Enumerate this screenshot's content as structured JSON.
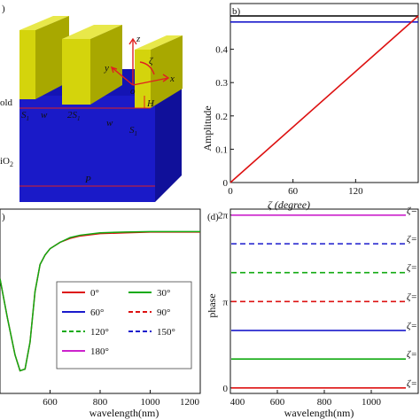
{
  "panel_a": {
    "tag": ")",
    "labels": {
      "gold": "old",
      "sio2": "iO",
      "sio2_sub": "2",
      "s1": "S",
      "s1_sub": "1",
      "w1": "w",
      "two_s1": "2S",
      "two_s1_sub": "1",
      "w2": "w",
      "s1b": "S",
      "s1b_sub": "1",
      "h": "H",
      "p": "P",
      "axis_z": "z",
      "axis_y": "y",
      "axis_x": "x",
      "zeta": "ζ",
      "origin": "o"
    },
    "colors": {
      "gold": "#d4d40c",
      "substrate": "#1a1ac8",
      "annot": "#e02020"
    }
  },
  "chart_data": [
    {
      "panel": "b",
      "tag": "b)",
      "type": "line",
      "xlabel": "ζ (degree)",
      "ylabel": "Amplitude",
      "xlim": [
        0,
        180
      ],
      "ylim": [
        0,
        0.5
      ],
      "xticks": [
        0,
        60,
        120
      ],
      "yticks": [
        0,
        0.1,
        0.2,
        0.3,
        0.4
      ],
      "series": [
        {
          "color": "#000000",
          "x": [
            0,
            180
          ],
          "y": [
            0.5,
            0.5
          ]
        },
        {
          "color": "#1a1acc",
          "x": [
            0,
            180
          ],
          "y": [
            0.482,
            0.482
          ]
        },
        {
          "color": "#dd1111",
          "x": [
            0,
            180
          ],
          "y": [
            0.0,
            0.5
          ]
        }
      ]
    },
    {
      "panel": "c",
      "tag": ")",
      "type": "line",
      "xlabel": "wavelength(nm)",
      "xlim": [
        400,
        1200
      ],
      "xticks": [
        600,
        800,
        1000,
        1200
      ],
      "legend": [
        "0°",
        "30°",
        "60°",
        "90°",
        "120°",
        "150°",
        "180°"
      ],
      "legend_colors": [
        "#dd1111",
        "#11aa11",
        "#1a1acc",
        "#dd1111",
        "#11aa11",
        "#1a1acc",
        "#cc22cc"
      ],
      "legend_dashed": [
        false,
        false,
        false,
        true,
        true,
        true,
        false
      ],
      "series": [
        {
          "color": "#dd1111",
          "x": [
            400,
            430,
            460,
            480,
            500,
            520,
            540,
            560,
            580,
            600,
            640,
            680,
            720,
            800,
            900,
            1000,
            1100,
            1200
          ],
          "y": [
            0.7,
            0.45,
            0.22,
            0.12,
            0.13,
            0.3,
            0.62,
            0.79,
            0.85,
            0.89,
            0.93,
            0.955,
            0.97,
            0.985,
            0.99,
            0.995,
            0.995,
            0.995
          ]
        },
        {
          "color": "#11aa11",
          "x": [
            400,
            430,
            460,
            480,
            500,
            520,
            540,
            560,
            580,
            600,
            640,
            680,
            720,
            800,
            900,
            1000,
            1100,
            1200
          ],
          "y": [
            0.7,
            0.45,
            0.22,
            0.12,
            0.13,
            0.3,
            0.62,
            0.79,
            0.85,
            0.89,
            0.93,
            0.96,
            0.975,
            0.99,
            0.995,
            0.998,
            0.998,
            0.998
          ]
        }
      ]
    },
    {
      "panel": "d",
      "tag": "(d)",
      "type": "line",
      "xlabel": "wavelength(nm)",
      "ylabel": "phase",
      "xlim": [
        400,
        1200
      ],
      "ylim": [
        -0.2,
        6.5
      ],
      "xticks": [
        400,
        600,
        800,
        1000
      ],
      "yticks": [
        0,
        3.14159,
        6.28318
      ],
      "ytick_labels": [
        "0",
        "π",
        "2π"
      ],
      "zeta_labels": [
        "ζ=",
        "ζ=",
        "ζ=",
        "ζ=",
        "ζ=",
        "ζ=",
        "ζ="
      ],
      "series": [
        {
          "color": "#dd1111",
          "dashed": false,
          "y": 0.0
        },
        {
          "color": "#11aa11",
          "dashed": false,
          "y": 1.05
        },
        {
          "color": "#1a1acc",
          "dashed": false,
          "y": 2.09
        },
        {
          "color": "#dd1111",
          "dashed": true,
          "y": 3.14
        },
        {
          "color": "#11aa11",
          "dashed": true,
          "y": 4.19
        },
        {
          "color": "#1a1acc",
          "dashed": true,
          "y": 5.24
        },
        {
          "color": "#cc22cc",
          "dashed": false,
          "y": 6.28
        }
      ]
    }
  ]
}
